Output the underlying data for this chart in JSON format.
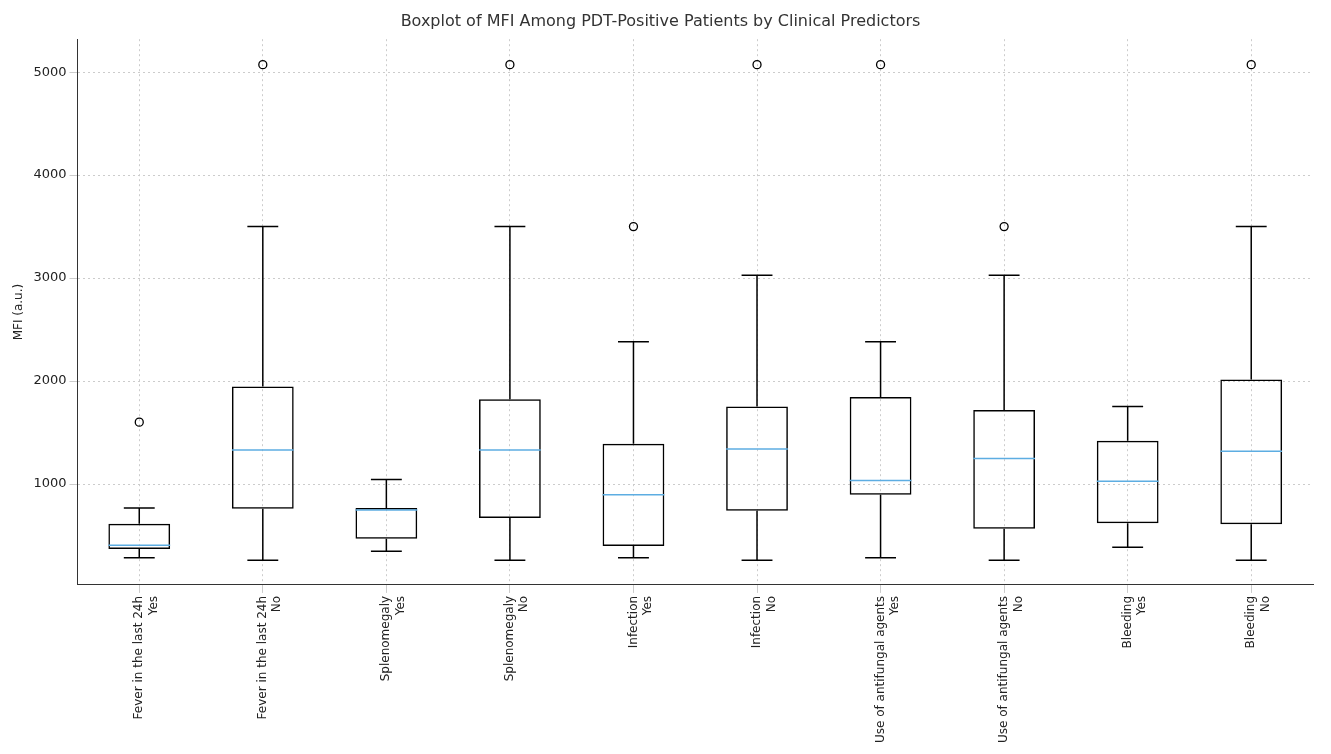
{
  "chart_data": {
    "type": "box",
    "title": "Boxplot of MFI Among PDT-Positive Patients by Clinical Predictors",
    "ylabel": "MFI (a.u.)",
    "categories": [
      "Fever in the last 24h\nYes",
      "Fever in the last 24h\nNo",
      "Splenomegaly\nYes",
      "Splenomegaly\nNo",
      "Infection\nYes",
      "Infection\nNo",
      "Use of antifungal agents\nYes",
      "Use of antifungal agents\nNo",
      "Bleeding\nYes",
      "Bleeding\nNo"
    ],
    "color": "#000000",
    "boxes": [
      {
        "low": 285,
        "q1": 368,
        "median": 406,
        "q3": 615,
        "high": 767,
        "outliers": [
          1601
        ]
      },
      {
        "low": 260,
        "q1": 760,
        "median": 1330,
        "q3": 1948,
        "high": 3500,
        "outliers": [
          5073
        ]
      },
      {
        "low": 347,
        "q1": 469,
        "median": 747,
        "q3": 767,
        "high": 1045
      },
      {
        "low": 260,
        "q1": 670,
        "median": 1330,
        "q3": 1823,
        "high": 3500,
        "outliers": [
          5073
        ]
      },
      {
        "low": 285,
        "q1": 399,
        "median": 896,
        "q3": 1392,
        "high": 2382,
        "outliers": [
          3500
        ]
      },
      {
        "low": 260,
        "q1": 740,
        "median": 1340,
        "q3": 1753,
        "high": 3028,
        "outliers": [
          5073
        ]
      },
      {
        "low": 285,
        "q1": 896,
        "median": 1035,
        "q3": 1844,
        "high": 2382,
        "outliers": [
          5073
        ]
      },
      {
        "low": 260,
        "q1": 566,
        "median": 1247,
        "q3": 1719,
        "high": 3028,
        "outliers": [
          3500
        ]
      },
      {
        "low": 385,
        "q1": 618,
        "median": 1028,
        "q3": 1420,
        "high": 1753
      },
      {
        "low": 260,
        "q1": 608,
        "median": 1319,
        "q3": 2014,
        "high": 3500,
        "outliers": [
          5073
        ]
      }
    ],
    "ylim": [
      20,
      5320
    ],
    "yticks": [
      1000,
      2000,
      3000,
      4000,
      5000
    ],
    "grid": true,
    "legend": false
  }
}
